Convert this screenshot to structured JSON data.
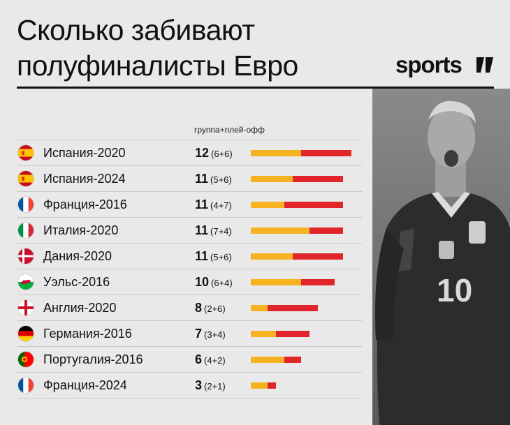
{
  "header": {
    "title_line1": "Сколько забивают",
    "title_line2": "полуфиналисты Евро",
    "logo": "sports"
  },
  "colors": {
    "group": "#f7b222",
    "playoff": "#e0252b",
    "background": "#e9e9e9",
    "text": "#111111"
  },
  "chart_data": {
    "type": "bar",
    "stacked": true,
    "orientation": "horizontal",
    "title": "Сколько забивают полуфиналисты Евро",
    "legend_label": "группа+плей-офф",
    "categories": [
      "Испания-2020",
      "Испания-2024",
      "Франция-2016",
      "Италия-2020",
      "Дания-2020",
      "Уэльс-2016",
      "Англия-2020",
      "Германия-2016",
      "Португалия-2016",
      "Франция-2024"
    ],
    "totals": [
      12,
      11,
      11,
      11,
      11,
      10,
      8,
      7,
      6,
      3
    ],
    "split_labels": [
      "(6+6)",
      "(5+6)",
      "(4+7)",
      "(7+4)",
      "(5+6)",
      "(6+4)",
      "(2+6)",
      "(3+4)",
      "(4+2)",
      "(2+1)"
    ],
    "series": [
      {
        "values": [
          6,
          5,
          4,
          7,
          5,
          6,
          2,
          3,
          4,
          2
        ]
      },
      {
        "values": [
          6,
          6,
          7,
          4,
          6,
          4,
          6,
          4,
          2,
          1
        ]
      }
    ],
    "flags": [
      "spain",
      "spain",
      "france",
      "italy",
      "denmark",
      "wales",
      "england",
      "germany",
      "portugal",
      "france"
    ],
    "xlim": [
      0,
      12
    ],
    "grid": false
  }
}
